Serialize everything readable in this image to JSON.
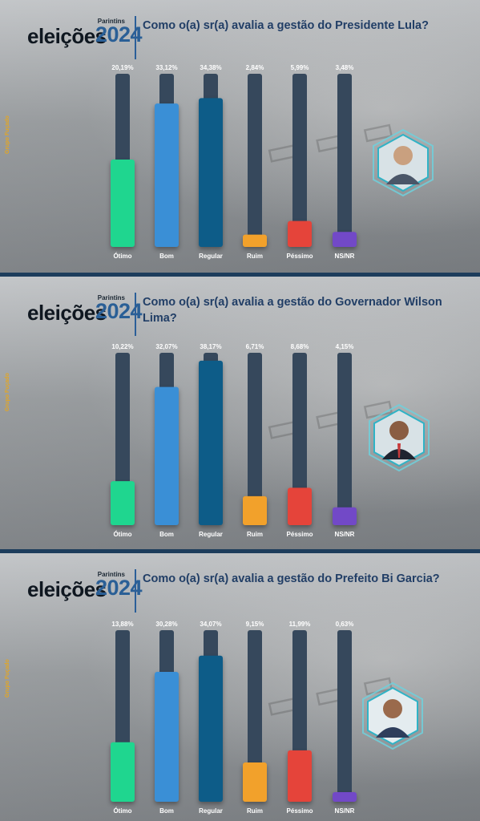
{
  "brand": {
    "city": "Parintins",
    "word": "eleições",
    "year": "2024",
    "source": "Grupo Fuçado"
  },
  "colors": {
    "track": "#36485c",
    "categories": [
      "#1fd68f",
      "#3a8fd6",
      "#0d5c88",
      "#f2a12b",
      "#e5443a",
      "#7249c7"
    ]
  },
  "chart_data": [
    {
      "type": "bar",
      "title": "Como o(a) sr(a) avalia a gestão do Presidente Lula?",
      "categories": [
        "Ótimo",
        "Bom",
        "Regular",
        "Ruim",
        "Péssimo",
        "NS/NR"
      ],
      "values": [
        20.19,
        33.12,
        34.38,
        2.84,
        5.99,
        3.48
      ],
      "value_labels": [
        "20,19%",
        "33,12%",
        "34,38%",
        "2,84%",
        "5,99%",
        "3,48%"
      ],
      "ylim": [
        0,
        40
      ]
    },
    {
      "type": "bar",
      "title": "Como o(a) sr(a) avalia a gestão do Governador Wilson Lima?",
      "categories": [
        "Ótimo",
        "Bom",
        "Regular",
        "Ruim",
        "Péssimo",
        "NS/NR"
      ],
      "values": [
        10.22,
        32.07,
        38.17,
        6.71,
        8.68,
        4.15
      ],
      "value_labels": [
        "10,22%",
        "32,07%",
        "38,17%",
        "6,71%",
        "8,68%",
        "4,15%"
      ],
      "ylim": [
        0,
        40
      ]
    },
    {
      "type": "bar",
      "title": "Como o(a) sr(a) avalia a gestão do Prefeito Bi Garcia?",
      "categories": [
        "Ótimo",
        "Bom",
        "Regular",
        "Ruim",
        "Péssimo",
        "NS/NR"
      ],
      "values": [
        13.88,
        30.28,
        34.07,
        9.15,
        11.99,
        0.63
      ],
      "value_labels": [
        "13,88%",
        "30,28%",
        "34,07%",
        "9,15%",
        "11,99%",
        "0,63%"
      ],
      "ylim": [
        0,
        40
      ]
    }
  ]
}
